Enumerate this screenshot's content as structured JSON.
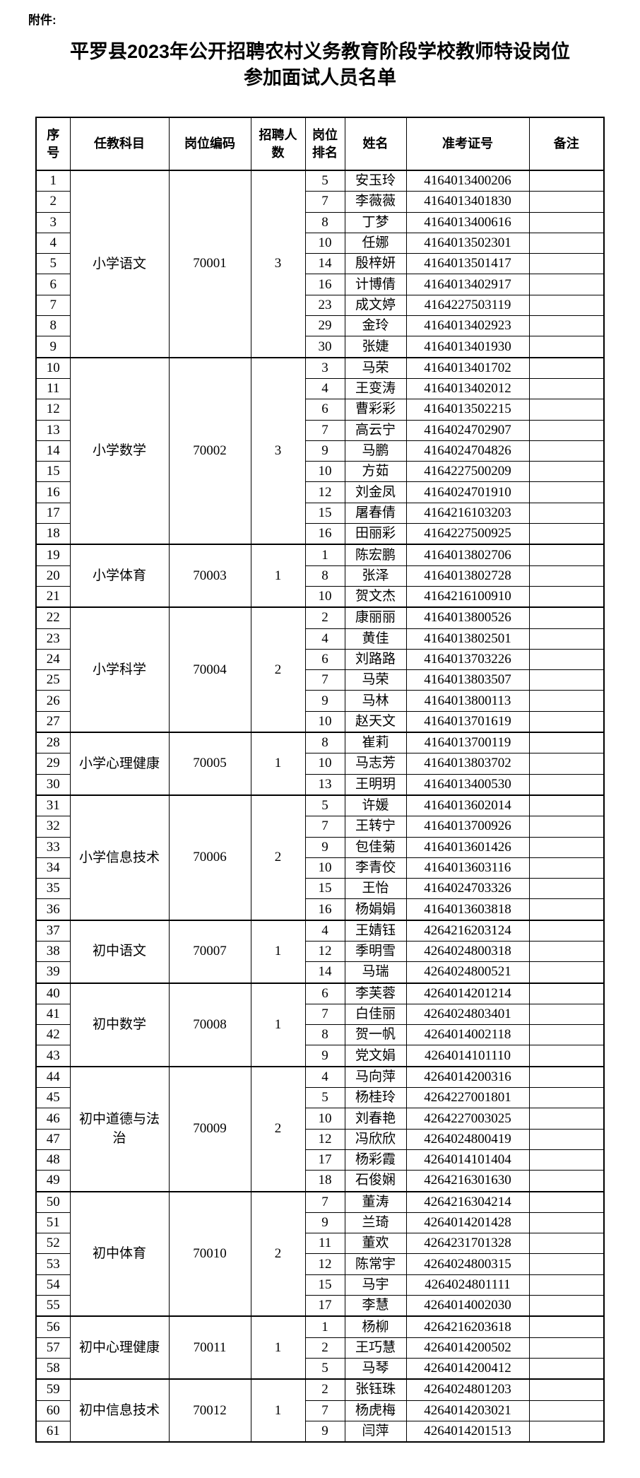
{
  "attachment_label": "附件:",
  "title_line1": "平罗县2023年公开招聘农村义务教育阶段学校教师特设岗位",
  "title_line2": "参加面试人员名单",
  "table": {
    "columns": [
      "序号",
      "任教科目",
      "岗位编码",
      "招聘人数",
      "岗位排名",
      "姓名",
      "准考证号",
      "备注"
    ],
    "groups": [
      {
        "subject": "小学语文",
        "code": "70001",
        "recruit": "3",
        "rows": [
          [
            1,
            5,
            "安玉玲",
            "4164013400206"
          ],
          [
            2,
            7,
            "李薇薇",
            "4164013401830"
          ],
          [
            3,
            8,
            "丁梦",
            "4164013400616"
          ],
          [
            4,
            10,
            "任娜",
            "4164013502301"
          ],
          [
            5,
            14,
            "殷梓妍",
            "4164013501417"
          ],
          [
            6,
            16,
            "计博倩",
            "4164013402917"
          ],
          [
            7,
            23,
            "成文婷",
            "4164227503119"
          ],
          [
            8,
            29,
            "金玲",
            "4164013402923"
          ],
          [
            9,
            30,
            "张婕",
            "4164013401930"
          ]
        ]
      },
      {
        "subject": "小学数学",
        "code": "70002",
        "recruit": "3",
        "rows": [
          [
            10,
            3,
            "马荣",
            "4164013401702"
          ],
          [
            11,
            4,
            "王变涛",
            "4164013402012"
          ],
          [
            12,
            6,
            "曹彩彩",
            "4164013502215"
          ],
          [
            13,
            7,
            "高云宁",
            "4164024702907"
          ],
          [
            14,
            9,
            "马鹏",
            "4164024704826"
          ],
          [
            15,
            10,
            "方茹",
            "4164227500209"
          ],
          [
            16,
            12,
            "刘金凤",
            "4164024701910"
          ],
          [
            17,
            15,
            "屠春倩",
            "4164216103203"
          ],
          [
            18,
            16,
            "田丽彩",
            "4164227500925"
          ]
        ]
      },
      {
        "subject": "小学体育",
        "code": "70003",
        "recruit": "1",
        "rows": [
          [
            19,
            1,
            "陈宏鹏",
            "4164013802706"
          ],
          [
            20,
            8,
            "张泽",
            "4164013802728"
          ],
          [
            21,
            10,
            "贺文杰",
            "4164216100910"
          ]
        ]
      },
      {
        "subject": "小学科学",
        "code": "70004",
        "recruit": "2",
        "rows": [
          [
            22,
            2,
            "康丽丽",
            "4164013800526"
          ],
          [
            23,
            4,
            "黄佳",
            "4164013802501"
          ],
          [
            24,
            6,
            "刘路路",
            "4164013703226"
          ],
          [
            25,
            7,
            "马荣",
            "4164013803507"
          ],
          [
            26,
            9,
            "马林",
            "4164013800113"
          ],
          [
            27,
            10,
            "赵天文",
            "4164013701619"
          ]
        ]
      },
      {
        "subject": "小学心理健康",
        "code": "70005",
        "recruit": "1",
        "rows": [
          [
            28,
            8,
            "崔莉",
            "4164013700119"
          ],
          [
            29,
            10,
            "马志芳",
            "4164013803702"
          ],
          [
            30,
            13,
            "王明玥",
            "4164013400530"
          ]
        ]
      },
      {
        "subject": "小学信息技术",
        "code": "70006",
        "recruit": "2",
        "rows": [
          [
            31,
            5,
            "许媛",
            "4164013602014"
          ],
          [
            32,
            7,
            "王转宁",
            "4164013700926"
          ],
          [
            33,
            9,
            "包佳菊",
            "4164013601426"
          ],
          [
            34,
            10,
            "李青佼",
            "4164013603116"
          ],
          [
            35,
            15,
            "王怡",
            "4164024703326"
          ],
          [
            36,
            16,
            "杨娟娟",
            "4164013603818"
          ]
        ]
      },
      {
        "subject": "初中语文",
        "code": "70007",
        "recruit": "1",
        "rows": [
          [
            37,
            4,
            "王婧钰",
            "4264216203124"
          ],
          [
            38,
            12,
            "季明雪",
            "4264024800318"
          ],
          [
            39,
            14,
            "马瑞",
            "4264024800521"
          ]
        ]
      },
      {
        "subject": "初中数学",
        "code": "70008",
        "recruit": "1",
        "rows": [
          [
            40,
            6,
            "李芙蓉",
            "4264014201214"
          ],
          [
            41,
            7,
            "白佳丽",
            "4264024803401"
          ],
          [
            42,
            8,
            "贺一帆",
            "4264014002118"
          ],
          [
            43,
            9,
            "党文娟",
            "4264014101110"
          ]
        ]
      },
      {
        "subject": "初中道德与法治",
        "code": "70009",
        "recruit": "2",
        "rows": [
          [
            44,
            4,
            "马向萍",
            "4264014200316"
          ],
          [
            45,
            5,
            "杨桂玲",
            "4264227001801"
          ],
          [
            46,
            10,
            "刘春艳",
            "4264227003025"
          ],
          [
            47,
            12,
            "冯欣欣",
            "4264024800419"
          ],
          [
            48,
            17,
            "杨彩霞",
            "4264014101404"
          ],
          [
            49,
            18,
            "石俊娴",
            "4264216301630"
          ]
        ]
      },
      {
        "subject": "初中体育",
        "code": "70010",
        "recruit": "2",
        "rows": [
          [
            50,
            7,
            "董涛",
            "4264216304214"
          ],
          [
            51,
            9,
            "兰琦",
            "4264014201428"
          ],
          [
            52,
            11,
            "董欢",
            "4264231701328"
          ],
          [
            53,
            12,
            "陈常宇",
            "4264024800315"
          ],
          [
            54,
            15,
            "马宇",
            "4264024801111"
          ],
          [
            55,
            17,
            "李慧",
            "4264014002030"
          ]
        ]
      },
      {
        "subject": "初中心理健康",
        "code": "70011",
        "recruit": "1",
        "rows": [
          [
            56,
            1,
            "杨柳",
            "4264216203618"
          ],
          [
            57,
            2,
            "王巧慧",
            "4264014200502"
          ],
          [
            58,
            5,
            "马琴",
            "4264014200412"
          ]
        ]
      },
      {
        "subject": "初中信息技术",
        "code": "70012",
        "recruit": "1",
        "rows": [
          [
            59,
            2,
            "张钰珠",
            "4264024801203"
          ],
          [
            60,
            7,
            "杨虎梅",
            "4264014203021"
          ],
          [
            61,
            9,
            "闫萍",
            "4264014201513"
          ]
        ]
      }
    ]
  }
}
